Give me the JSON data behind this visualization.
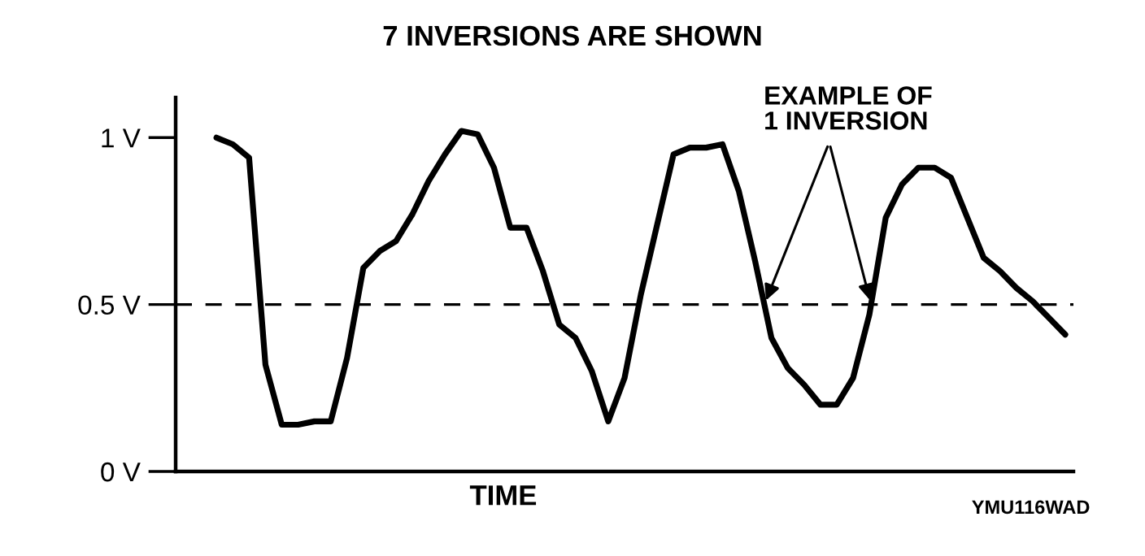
{
  "chart_data": {
    "type": "line",
    "title": "7 INVERSIONS ARE SHOWN",
    "xlabel": "TIME",
    "categories": [
      null,
      null,
      null,
      null,
      null,
      null,
      null,
      null,
      null,
      null,
      null,
      null,
      null,
      null,
      null,
      null,
      null,
      null,
      null,
      null,
      null,
      null,
      null,
      null,
      null,
      null,
      null,
      null,
      null,
      null,
      null,
      null,
      null,
      null,
      null,
      null,
      null,
      null,
      null,
      null,
      null,
      null,
      null,
      null,
      null,
      null,
      null,
      null,
      null,
      null,
      null,
      null,
      null
    ],
    "series": [
      {
        "color": "#000000",
        "values": [
          1.0,
          0.98,
          0.94,
          0.32,
          0.14,
          0.14,
          0.15,
          0.15,
          0.34,
          0.61,
          0.66,
          0.69,
          0.77,
          0.87,
          0.95,
          1.02,
          1.01,
          0.91,
          0.73,
          0.73,
          0.6,
          0.44,
          0.4,
          0.3,
          0.15,
          0.28,
          0.53,
          0.74,
          0.95,
          0.97,
          0.97,
          0.98,
          0.84,
          0.63,
          0.4,
          0.31,
          0.26,
          0.2,
          0.2,
          0.28,
          0.47,
          0.76,
          0.86,
          0.91,
          0.91,
          0.88,
          0.76,
          0.64,
          0.6,
          0.55,
          0.51,
          0.46,
          0.41
        ]
      }
    ],
    "ylim": [
      0,
      1.12
    ],
    "yticks": [
      {
        "value": 0,
        "label": "0 V"
      },
      {
        "value": 0.5,
        "label": "0.5 V"
      },
      {
        "value": 1,
        "label": "1 V"
      }
    ],
    "ref_lines": [
      {
        "axis": "y",
        "value": 0.5,
        "color": "#000000",
        "line_style": "dashed"
      }
    ],
    "annotations": [
      "EXAMPLE OF\n1 INVERSION",
      "YMU116WAD"
    ],
    "grid": false,
    "legend": false,
    "marker": "none",
    "line_style": "solid"
  }
}
